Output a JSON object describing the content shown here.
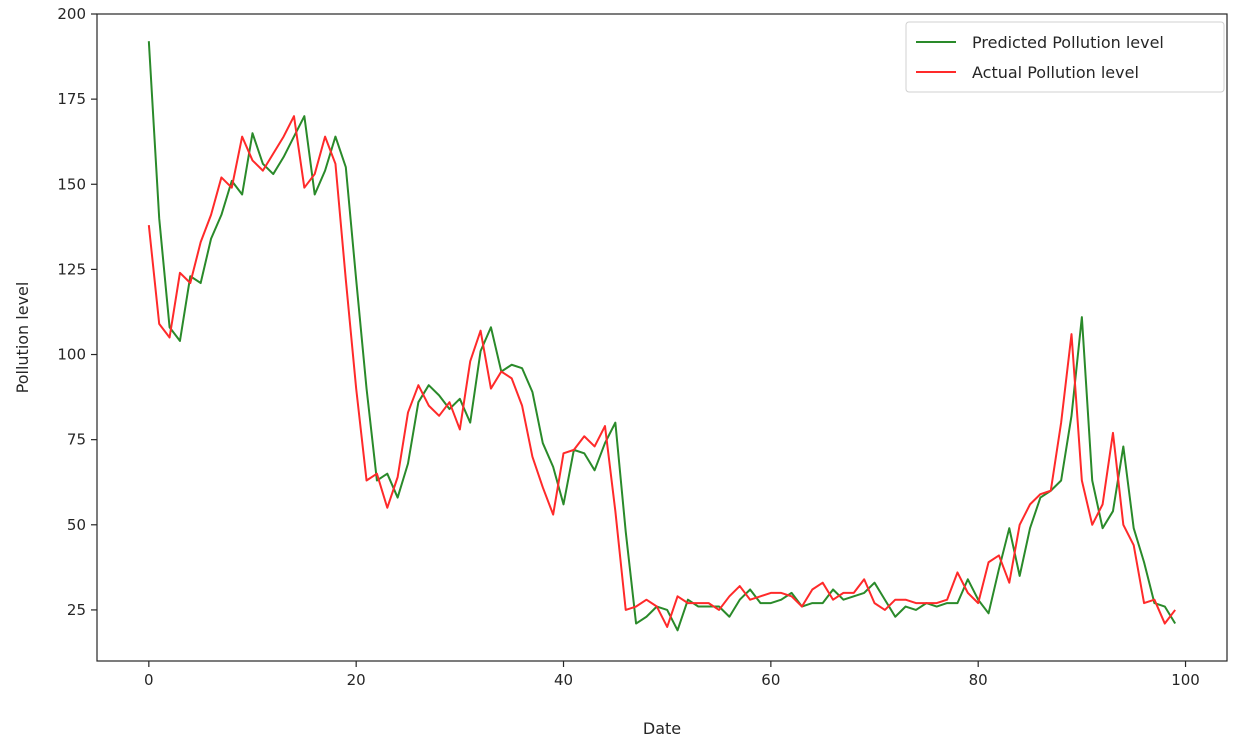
{
  "chart_data": {
    "type": "line",
    "xlabel": "Date",
    "ylabel": "Pollution level",
    "xlim": [
      -5,
      104
    ],
    "ylim": [
      10,
      200
    ],
    "xticks": [
      0,
      20,
      40,
      60,
      80,
      100
    ],
    "yticks": [
      25,
      50,
      75,
      100,
      125,
      150,
      175,
      200
    ],
    "grid": false,
    "legend_position": "top-right",
    "series": [
      {
        "name": "Predicted Pollution level",
        "color": "#2a8a2a",
        "values": [
          192,
          140,
          108,
          104,
          123,
          121,
          134,
          141,
          151,
          147,
          165,
          156,
          153,
          158,
          164,
          170,
          147,
          154,
          164,
          155,
          122,
          90,
          63,
          65,
          58,
          68,
          86,
          91,
          88,
          84,
          87,
          80,
          101,
          108,
          95,
          97,
          96,
          89,
          74,
          67,
          56,
          72,
          71,
          66,
          74,
          80,
          48,
          21,
          23,
          26,
          25,
          19,
          28,
          26,
          26,
          26,
          23,
          28,
          31,
          27,
          27,
          28,
          30,
          26,
          27,
          27,
          31,
          28,
          29,
          30,
          33,
          28,
          23,
          26,
          25,
          27,
          26,
          27,
          27,
          34,
          28,
          24,
          37,
          49,
          35,
          49,
          58,
          60,
          63,
          82,
          111,
          63,
          49,
          54,
          73,
          49,
          39,
          27,
          26,
          21
        ]
      },
      {
        "name": "Actual Pollution level",
        "color": "#ff2a2a",
        "values": [
          138,
          109,
          105,
          124,
          121,
          133,
          141,
          152,
          149,
          164,
          157,
          154,
          159,
          164,
          170,
          149,
          153,
          164,
          156,
          122,
          90,
          63,
          65,
          55,
          64,
          83,
          91,
          85,
          82,
          86,
          78,
          98,
          107,
          90,
          95,
          93,
          85,
          70,
          61,
          53,
          71,
          72,
          76,
          73,
          79,
          54,
          25,
          26,
          28,
          26,
          20,
          29,
          27,
          27,
          27,
          25,
          29,
          32,
          28,
          29,
          30,
          30,
          29,
          26,
          31,
          33,
          28,
          30,
          30,
          34,
          27,
          25,
          28,
          28,
          27,
          27,
          27,
          28,
          36,
          30,
          27,
          39,
          41,
          33,
          50,
          56,
          59,
          60,
          80,
          106,
          63,
          50,
          56,
          77,
          50,
          44,
          27,
          28,
          21,
          25
        ]
      }
    ]
  }
}
